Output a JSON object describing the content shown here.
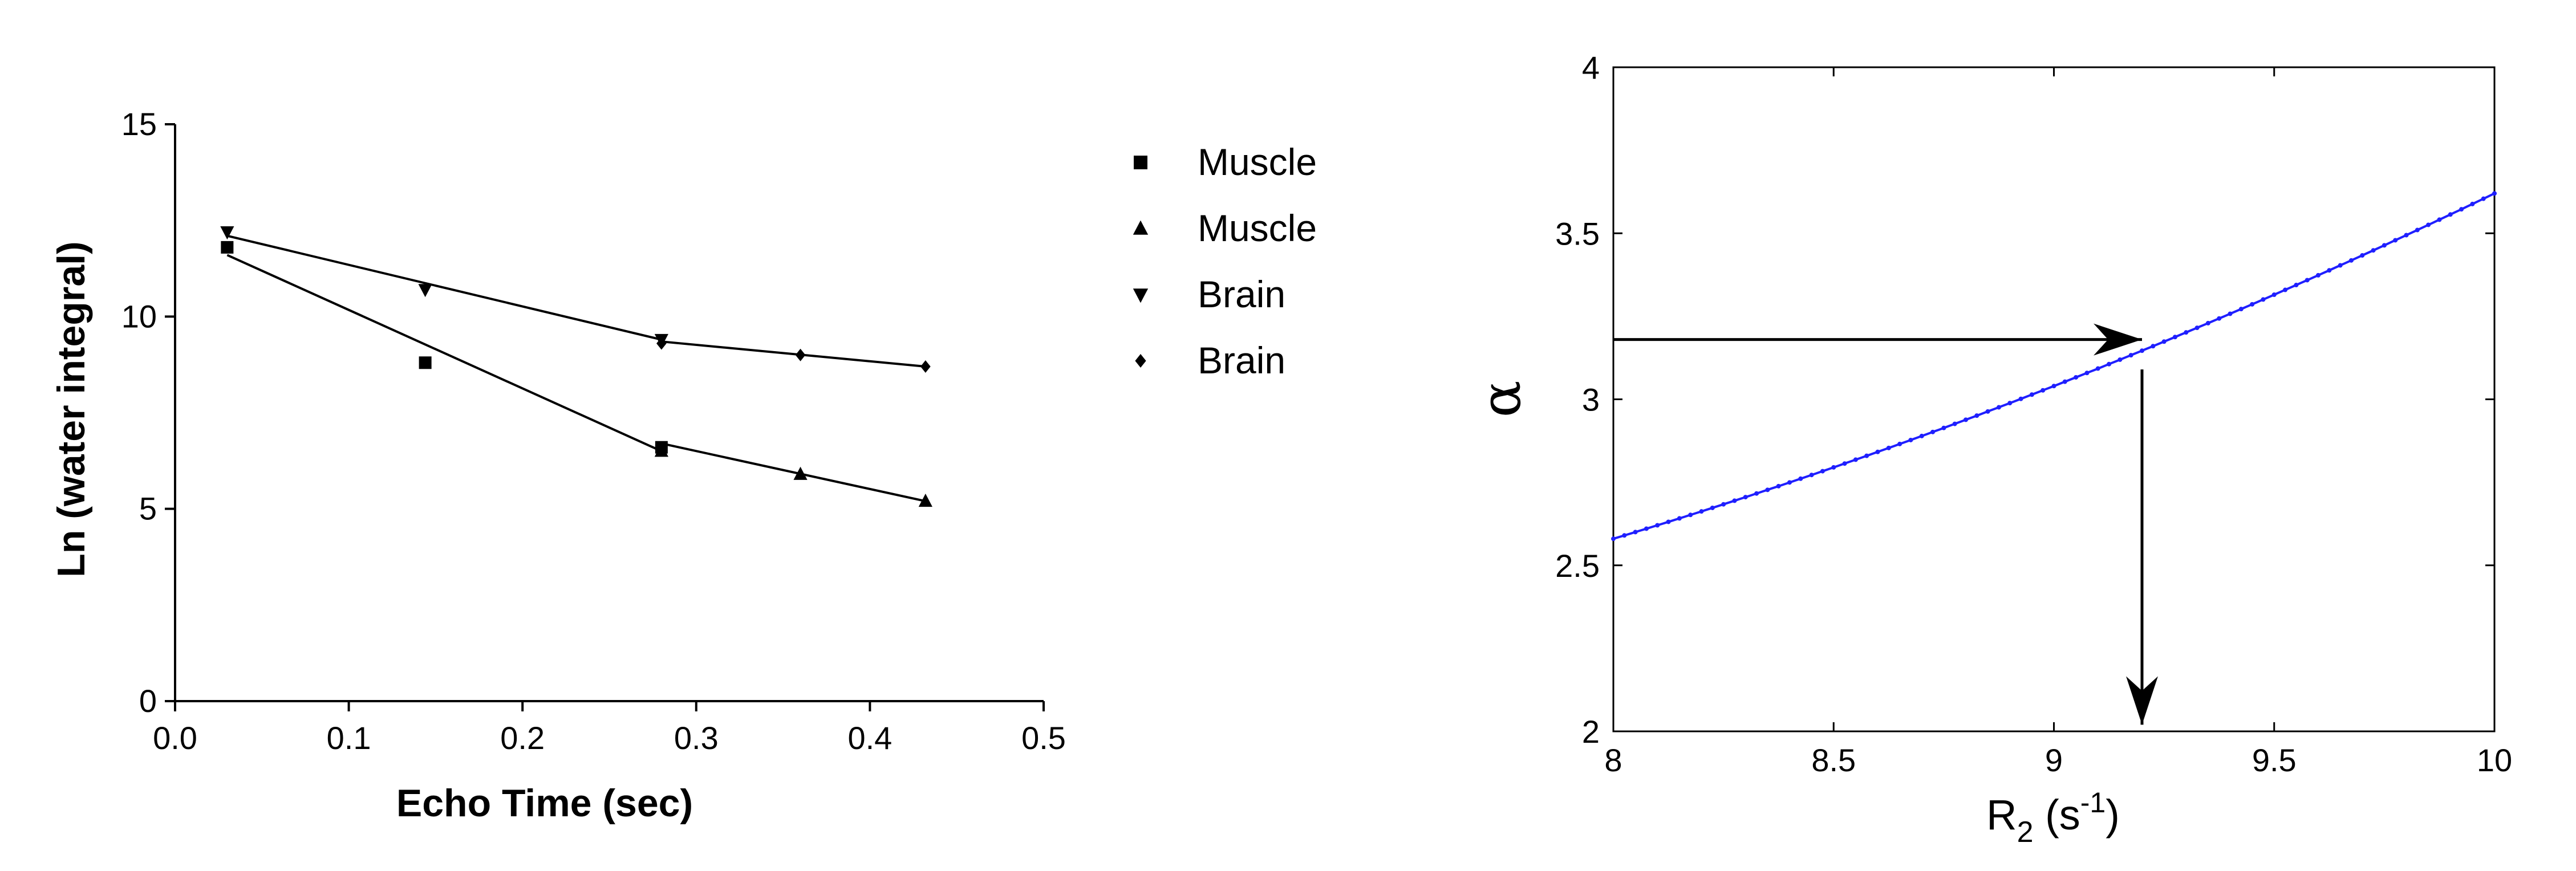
{
  "chart_data": [
    {
      "type": "scatter",
      "xlabel": "Echo Time (sec)",
      "ylabel": "Ln (water integral)",
      "xlim": [
        0.0,
        0.5
      ],
      "ylim": [
        0,
        15
      ],
      "xticks": [
        "0.0",
        "0.1",
        "0.2",
        "0.3",
        "0.4",
        "0.5"
      ],
      "yticks": [
        "0",
        "5",
        "10",
        "15"
      ],
      "legend_placement": "right",
      "series": [
        {
          "name": "Muscle",
          "marker": "square",
          "x": [
            0.03,
            0.144,
            0.28
          ],
          "y": [
            11.8,
            8.8,
            6.6
          ]
        },
        {
          "name": "Muscle",
          "marker": "triangle-up",
          "x": [
            0.28,
            0.36,
            0.432
          ],
          "y": [
            6.5,
            5.9,
            5.2
          ]
        },
        {
          "name": "Brain",
          "marker": "triangle-down",
          "x": [
            0.03,
            0.144,
            0.28
          ],
          "y": [
            12.2,
            10.7,
            9.4
          ]
        },
        {
          "name": "Brain",
          "marker": "diamond",
          "x": [
            0.28,
            0.36,
            0.432
          ],
          "y": [
            9.3,
            9.0,
            8.7
          ]
        }
      ],
      "fit_lines": [
        {
          "x": [
            0.03,
            0.28
          ],
          "y": [
            11.6,
            6.5
          ]
        },
        {
          "x": [
            0.28,
            0.432
          ],
          "y": [
            6.7,
            5.2
          ]
        },
        {
          "x": [
            0.03,
            0.28
          ],
          "y": [
            12.1,
            9.4
          ]
        },
        {
          "x": [
            0.28,
            0.432
          ],
          "y": [
            9.35,
            8.7
          ]
        }
      ]
    },
    {
      "type": "line",
      "xlabel": {
        "main": "R",
        "sub": "2",
        "paren_open": " (s",
        "sup": "-1",
        "paren_close": ")"
      },
      "ylabel": "α",
      "xlim": [
        8,
        10
      ],
      "ylim": [
        2,
        4
      ],
      "xticks": [
        "8",
        "8.5",
        "9",
        "9.5",
        "10"
      ],
      "yticks": [
        "2",
        "2.5",
        "3",
        "3.5",
        "4"
      ],
      "line_color": "#1f1fff",
      "curve": {
        "x0": 8.0,
        "x1": 10.0,
        "y_at": [
          [
            8.0,
            2.58
          ],
          [
            9.0,
            3.04
          ],
          [
            10.0,
            3.62
          ]
        ]
      },
      "annotations": [
        {
          "kind": "arrow",
          "from": [
            8.0,
            3.18
          ],
          "to": [
            9.2,
            3.18
          ]
        },
        {
          "kind": "arrow",
          "from": [
            9.2,
            3.09
          ],
          "to": [
            9.2,
            2.02
          ]
        }
      ]
    }
  ]
}
